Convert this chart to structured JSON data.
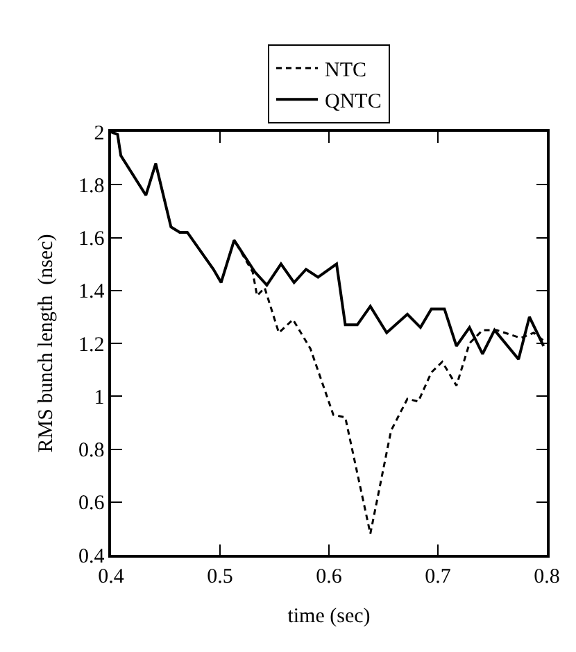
{
  "chart_data": {
    "type": "line",
    "xlabel": "time (sec)",
    "ylabel": "RMS bunch length  (nsec)",
    "xlim": [
      0.4,
      0.8
    ],
    "xticks": [
      0.4,
      0.5,
      0.6,
      0.7,
      0.8
    ],
    "ylim": [
      0.4,
      2
    ],
    "yticks": [
      0.4,
      0.6,
      0.8,
      1,
      1.2,
      1.4,
      1.6,
      1.8,
      2
    ],
    "legend": "top",
    "marker": "none",
    "series": [
      {
        "name": "NTC",
        "color": "#000000",
        "line_style": "dashed",
        "x": [
          0.4,
          0.406,
          0.409,
          0.432,
          0.441,
          0.455,
          0.463,
          0.47,
          0.494,
          0.501,
          0.513,
          0.53,
          0.534,
          0.541,
          0.554,
          0.567,
          0.583,
          0.604,
          0.615,
          0.638,
          0.657,
          0.672,
          0.682,
          0.694,
          0.704,
          0.717,
          0.729,
          0.741,
          0.754,
          0.776,
          0.788,
          0.797
        ],
        "values": [
          2.0,
          1.99,
          1.91,
          1.76,
          1.88,
          1.64,
          1.62,
          1.62,
          1.48,
          1.43,
          1.59,
          1.47,
          1.38,
          1.41,
          1.24,
          1.29,
          1.18,
          0.93,
          0.92,
          0.48,
          0.87,
          0.99,
          0.98,
          1.09,
          1.13,
          1.04,
          1.2,
          1.25,
          1.25,
          1.22,
          1.24,
          1.21
        ]
      },
      {
        "name": "QNTC",
        "color": "#000000",
        "line_style": "solid",
        "x": [
          0.4,
          0.406,
          0.409,
          0.432,
          0.441,
          0.455,
          0.463,
          0.47,
          0.494,
          0.501,
          0.513,
          0.532,
          0.543,
          0.556,
          0.568,
          0.579,
          0.59,
          0.607,
          0.615,
          0.626,
          0.638,
          0.653,
          0.672,
          0.684,
          0.694,
          0.706,
          0.717,
          0.729,
          0.741,
          0.752,
          0.774,
          0.784,
          0.797
        ],
        "values": [
          2.0,
          1.99,
          1.91,
          1.76,
          1.88,
          1.64,
          1.62,
          1.62,
          1.48,
          1.43,
          1.59,
          1.47,
          1.42,
          1.5,
          1.43,
          1.48,
          1.45,
          1.5,
          1.27,
          1.27,
          1.34,
          1.24,
          1.31,
          1.26,
          1.33,
          1.33,
          1.19,
          1.26,
          1.16,
          1.25,
          1.14,
          1.3,
          1.19
        ]
      }
    ]
  }
}
